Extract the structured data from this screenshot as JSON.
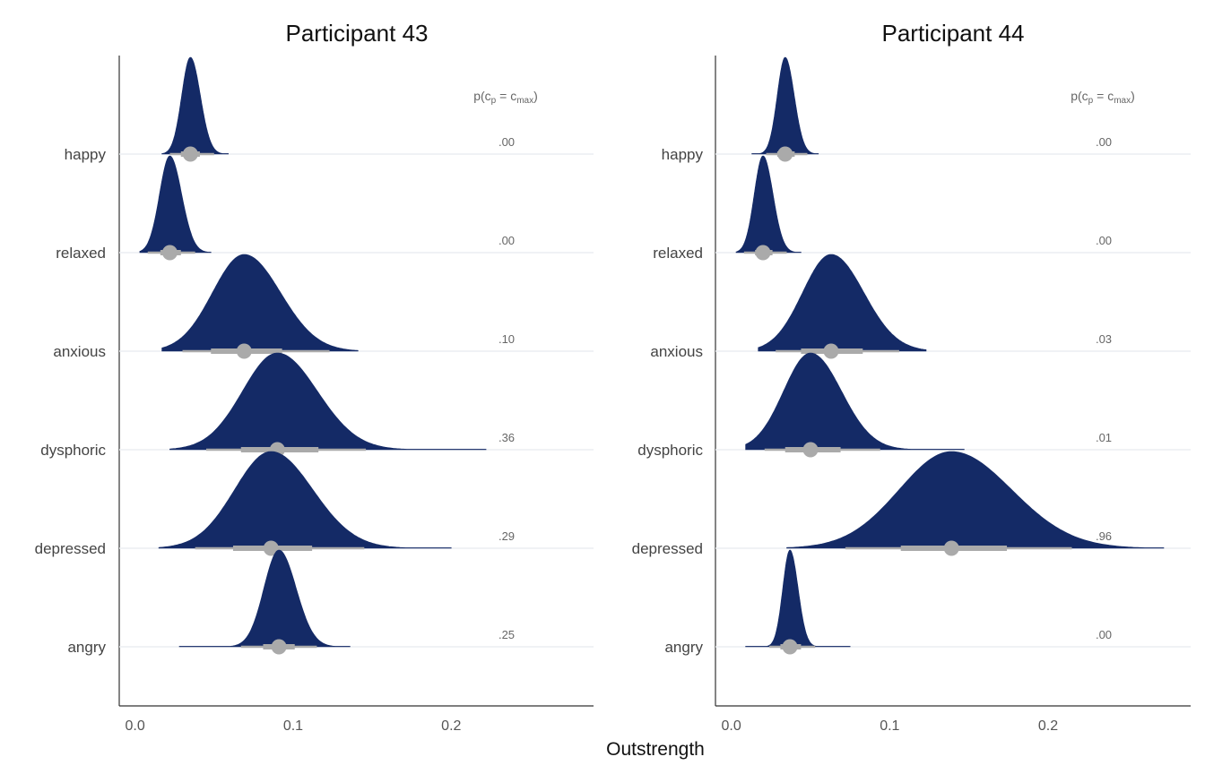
{
  "chart_data": {
    "type": "ridgeline",
    "xlabel": "Outstrength",
    "xlim": [
      -0.01,
      0.29
    ],
    "xticks": [
      0.0,
      0.1,
      0.2
    ],
    "xtick_labels": [
      "0.0",
      "0.1",
      "0.2"
    ],
    "categories": [
      "happy",
      "relaxed",
      "anxious",
      "dysphoric",
      "depressed",
      "angry"
    ],
    "prob_header": {
      "base": "p(c",
      "sub1": "p",
      "mid": " = c",
      "sub2": "max",
      "end": ")"
    },
    "fill_color": "#142a66",
    "interval_color": "#aaaaaa",
    "panels": [
      {
        "title": "Participant 43",
        "rows": [
          {
            "category": "happy",
            "median": 0.035,
            "q25": 0.029,
            "q75": 0.041,
            "lo": 0.022,
            "hi": 0.05,
            "min": 0.017,
            "max": 0.059,
            "sd": 0.0055,
            "prob": ".00"
          },
          {
            "category": "relaxed",
            "median": 0.022,
            "q25": 0.016,
            "q75": 0.029,
            "lo": 0.008,
            "hi": 0.038,
            "min": 0.003,
            "max": 0.048,
            "sd": 0.0065,
            "prob": ".00"
          },
          {
            "category": "anxious",
            "median": 0.069,
            "q25": 0.048,
            "q75": 0.093,
            "lo": 0.03,
            "hi": 0.123,
            "min": 0.017,
            "max": 0.141,
            "sd": 0.02,
            "prob": ".10"
          },
          {
            "category": "dysphoric",
            "median": 0.09,
            "q25": 0.067,
            "q75": 0.116,
            "lo": 0.045,
            "hi": 0.146,
            "min": 0.022,
            "max": 0.222,
            "sd": 0.022,
            "prob": ".36"
          },
          {
            "category": "depressed",
            "median": 0.086,
            "q25": 0.062,
            "q75": 0.112,
            "lo": 0.038,
            "hi": 0.145,
            "min": 0.015,
            "max": 0.2,
            "sd": 0.023,
            "prob": ".29"
          },
          {
            "category": "angry",
            "median": 0.091,
            "q25": 0.081,
            "q75": 0.101,
            "lo": 0.067,
            "hi": 0.115,
            "min": 0.028,
            "max": 0.136,
            "sd": 0.0095,
            "prob": ".25"
          }
        ]
      },
      {
        "title": "Participant 44",
        "rows": [
          {
            "category": "happy",
            "median": 0.034,
            "q25": 0.029,
            "q75": 0.04,
            "lo": 0.022,
            "hi": 0.048,
            "min": 0.013,
            "max": 0.055,
            "sd": 0.005,
            "prob": ".00"
          },
          {
            "category": "relaxed",
            "median": 0.02,
            "q25": 0.015,
            "q75": 0.026,
            "lo": 0.008,
            "hi": 0.035,
            "min": 0.003,
            "max": 0.044,
            "sd": 0.0055,
            "prob": ".00"
          },
          {
            "category": "anxious",
            "median": 0.063,
            "q25": 0.044,
            "q75": 0.083,
            "lo": 0.028,
            "hi": 0.106,
            "min": 0.017,
            "max": 0.123,
            "sd": 0.018,
            "prob": ".03"
          },
          {
            "category": "dysphoric",
            "median": 0.05,
            "q25": 0.034,
            "q75": 0.069,
            "lo": 0.021,
            "hi": 0.094,
            "min": 0.009,
            "max": 0.147,
            "sd": 0.017,
            "prob": ".01"
          },
          {
            "category": "depressed",
            "median": 0.139,
            "q25": 0.107,
            "q75": 0.174,
            "lo": 0.072,
            "hi": 0.215,
            "min": 0.035,
            "max": 0.273,
            "sd": 0.033,
            "prob": ".96"
          },
          {
            "category": "angry",
            "median": 0.037,
            "q25": 0.031,
            "q75": 0.044,
            "lo": 0.024,
            "hi": 0.053,
            "min": 0.009,
            "max": 0.075,
            "sd": 0.0045,
            "prob": ".00"
          }
        ]
      }
    ]
  }
}
